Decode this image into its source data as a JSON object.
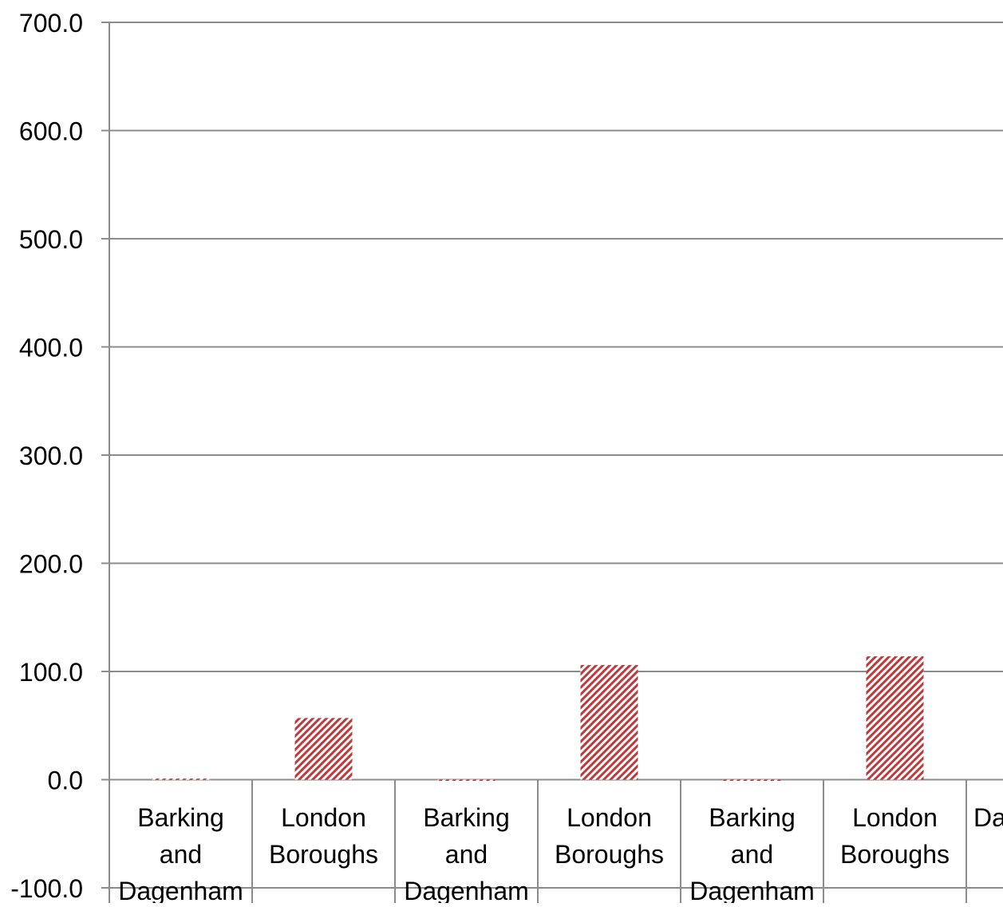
{
  "chart_data": {
    "type": "bar",
    "categories": [
      [
        "Barking",
        "and",
        "Dagenham"
      ],
      [
        "London",
        "Boroughs"
      ],
      [
        "Barking",
        "and",
        "Dagenham"
      ],
      [
        "London",
        "Boroughs"
      ],
      [
        "Barking",
        "and",
        "Dagenham"
      ],
      [
        "London",
        "Boroughs"
      ],
      [
        "Da"
      ]
    ],
    "series": [
      {
        "values": [
          1.0,
          57.0,
          -1.0,
          106.0,
          0.0,
          114.0,
          null
        ]
      }
    ],
    "y_ticks": [
      "700.0",
      "600.0",
      "500.0",
      "400.0",
      "300.0",
      "200.0",
      "100.0",
      "0.0",
      "-100.0"
    ],
    "ylim": [
      -100,
      700
    ],
    "grid": true,
    "colors": {
      "bar_stripe": "#c0393b",
      "bar_background": "#ffffff",
      "gridline": "#8c8c8c",
      "text": "#000000"
    }
  }
}
